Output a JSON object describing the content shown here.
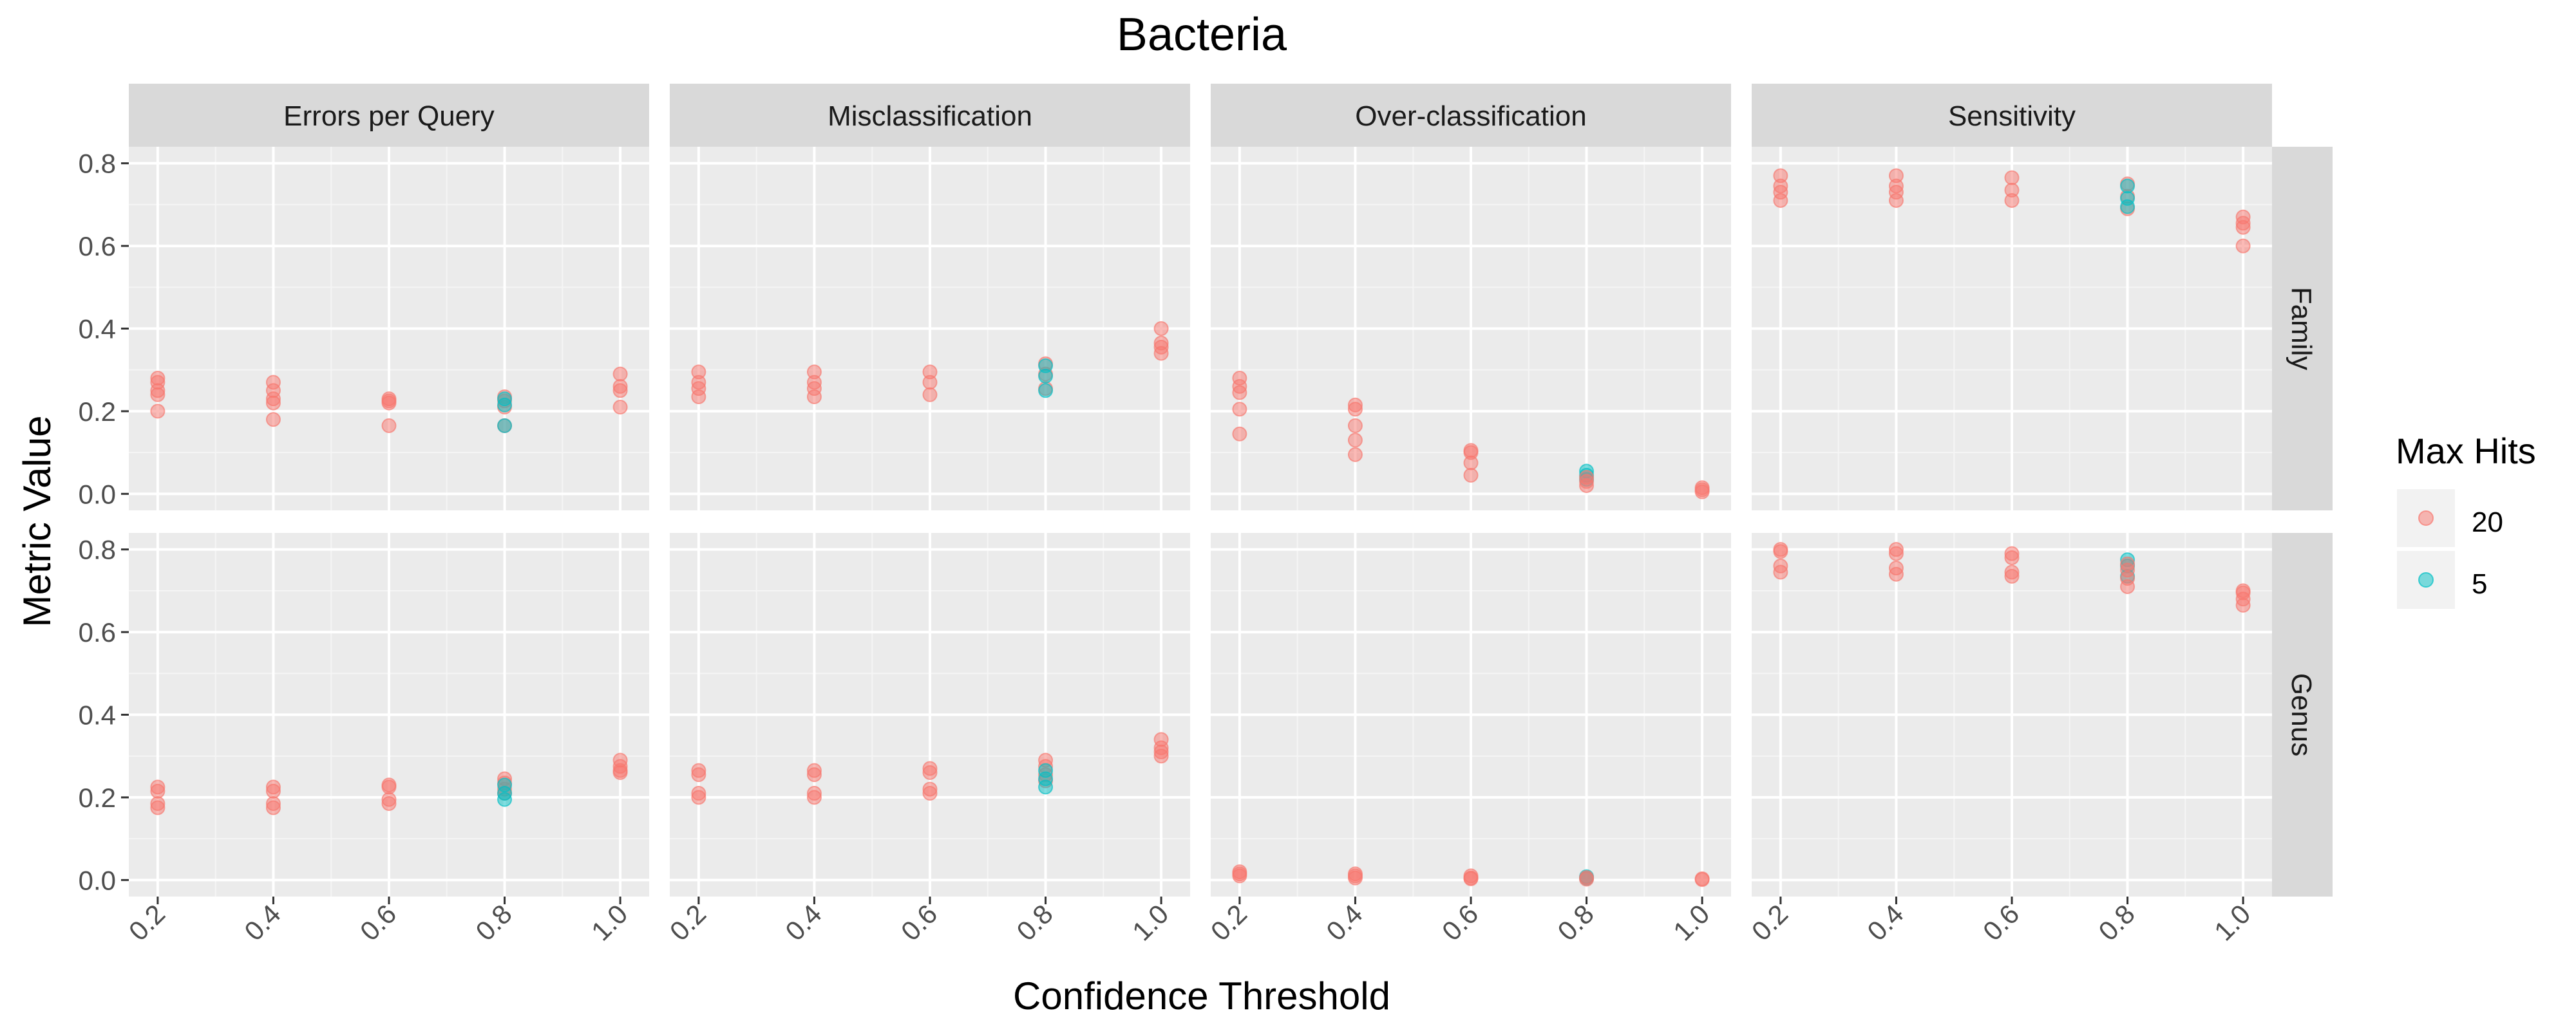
{
  "chart_data": {
    "type": "scatter",
    "title": "Bacteria",
    "xlabel": "Confidence Threshold",
    "ylabel": "Metric Value",
    "xlim": [
      0.15,
      1.05
    ],
    "ylim": [
      -0.04,
      0.84
    ],
    "x_ticks": [
      "0.2",
      "0.4",
      "0.6",
      "0.8",
      "1.0"
    ],
    "y_ticks": [
      "0.0",
      "0.2",
      "0.4",
      "0.6",
      "0.8"
    ],
    "grid": true,
    "legend": {
      "title": "Max Hits",
      "placement": "right",
      "entries": [
        {
          "label": "20",
          "color": "#F8766D"
        },
        {
          "label": "5",
          "color": "#00BFC4"
        }
      ]
    },
    "facet_columns": [
      "Errors per Query",
      "Misclassification",
      "Over-classification",
      "Sensitivity"
    ],
    "facet_rows": [
      "Family",
      "Genus"
    ],
    "series_colors": {
      "20": "#F8766D",
      "5": "#00BFC4"
    },
    "panels": [
      {
        "column": "Errors per Query",
        "row": "Family",
        "points": [
          {
            "x": 0.2,
            "y": 0.28,
            "hits": "20"
          },
          {
            "x": 0.2,
            "y": 0.27,
            "hits": "20"
          },
          {
            "x": 0.2,
            "y": 0.25,
            "hits": "20"
          },
          {
            "x": 0.2,
            "y": 0.24,
            "hits": "20"
          },
          {
            "x": 0.2,
            "y": 0.2,
            "hits": "20"
          },
          {
            "x": 0.4,
            "y": 0.27,
            "hits": "20"
          },
          {
            "x": 0.4,
            "y": 0.25,
            "hits": "20"
          },
          {
            "x": 0.4,
            "y": 0.23,
            "hits": "20"
          },
          {
            "x": 0.4,
            "y": 0.22,
            "hits": "20"
          },
          {
            "x": 0.4,
            "y": 0.18,
            "hits": "20"
          },
          {
            "x": 0.6,
            "y": 0.23,
            "hits": "20"
          },
          {
            "x": 0.6,
            "y": 0.225,
            "hits": "20"
          },
          {
            "x": 0.6,
            "y": 0.22,
            "hits": "20"
          },
          {
            "x": 0.6,
            "y": 0.165,
            "hits": "20"
          },
          {
            "x": 0.8,
            "y": 0.235,
            "hits": "20"
          },
          {
            "x": 0.8,
            "y": 0.225,
            "hits": "20"
          },
          {
            "x": 0.8,
            "y": 0.21,
            "hits": "20"
          },
          {
            "x": 0.8,
            "y": 0.165,
            "hits": "20"
          },
          {
            "x": 0.8,
            "y": 0.23,
            "hits": "5"
          },
          {
            "x": 0.8,
            "y": 0.215,
            "hits": "5"
          },
          {
            "x": 0.8,
            "y": 0.165,
            "hits": "5"
          },
          {
            "x": 1.0,
            "y": 0.29,
            "hits": "20"
          },
          {
            "x": 1.0,
            "y": 0.26,
            "hits": "20"
          },
          {
            "x": 1.0,
            "y": 0.25,
            "hits": "20"
          },
          {
            "x": 1.0,
            "y": 0.21,
            "hits": "20"
          }
        ]
      },
      {
        "column": "Misclassification",
        "row": "Family",
        "points": [
          {
            "x": 0.2,
            "y": 0.295,
            "hits": "20"
          },
          {
            "x": 0.2,
            "y": 0.27,
            "hits": "20"
          },
          {
            "x": 0.2,
            "y": 0.255,
            "hits": "20"
          },
          {
            "x": 0.2,
            "y": 0.235,
            "hits": "20"
          },
          {
            "x": 0.4,
            "y": 0.295,
            "hits": "20"
          },
          {
            "x": 0.4,
            "y": 0.27,
            "hits": "20"
          },
          {
            "x": 0.4,
            "y": 0.255,
            "hits": "20"
          },
          {
            "x": 0.4,
            "y": 0.235,
            "hits": "20"
          },
          {
            "x": 0.6,
            "y": 0.295,
            "hits": "20"
          },
          {
            "x": 0.6,
            "y": 0.27,
            "hits": "20"
          },
          {
            "x": 0.6,
            "y": 0.24,
            "hits": "20"
          },
          {
            "x": 0.8,
            "y": 0.315,
            "hits": "20"
          },
          {
            "x": 0.8,
            "y": 0.29,
            "hits": "20"
          },
          {
            "x": 0.8,
            "y": 0.255,
            "hits": "20"
          },
          {
            "x": 0.8,
            "y": 0.31,
            "hits": "5"
          },
          {
            "x": 0.8,
            "y": 0.285,
            "hits": "5"
          },
          {
            "x": 0.8,
            "y": 0.25,
            "hits": "5"
          },
          {
            "x": 1.0,
            "y": 0.4,
            "hits": "20"
          },
          {
            "x": 1.0,
            "y": 0.365,
            "hits": "20"
          },
          {
            "x": 1.0,
            "y": 0.355,
            "hits": "20"
          },
          {
            "x": 1.0,
            "y": 0.34,
            "hits": "20"
          }
        ]
      },
      {
        "column": "Over-classification",
        "row": "Family",
        "points": [
          {
            "x": 0.2,
            "y": 0.28,
            "hits": "20"
          },
          {
            "x": 0.2,
            "y": 0.26,
            "hits": "20"
          },
          {
            "x": 0.2,
            "y": 0.245,
            "hits": "20"
          },
          {
            "x": 0.2,
            "y": 0.205,
            "hits": "20"
          },
          {
            "x": 0.2,
            "y": 0.145,
            "hits": "20"
          },
          {
            "x": 0.4,
            "y": 0.215,
            "hits": "20"
          },
          {
            "x": 0.4,
            "y": 0.205,
            "hits": "20"
          },
          {
            "x": 0.4,
            "y": 0.165,
            "hits": "20"
          },
          {
            "x": 0.4,
            "y": 0.13,
            "hits": "20"
          },
          {
            "x": 0.4,
            "y": 0.095,
            "hits": "20"
          },
          {
            "x": 0.6,
            "y": 0.105,
            "hits": "20"
          },
          {
            "x": 0.6,
            "y": 0.1,
            "hits": "20"
          },
          {
            "x": 0.6,
            "y": 0.075,
            "hits": "20"
          },
          {
            "x": 0.6,
            "y": 0.045,
            "hits": "20"
          },
          {
            "x": 0.8,
            "y": 0.055,
            "hits": "5"
          },
          {
            "x": 0.8,
            "y": 0.045,
            "hits": "5"
          },
          {
            "x": 0.8,
            "y": 0.035,
            "hits": "5"
          },
          {
            "x": 0.8,
            "y": 0.04,
            "hits": "20"
          },
          {
            "x": 0.8,
            "y": 0.03,
            "hits": "20"
          },
          {
            "x": 0.8,
            "y": 0.02,
            "hits": "20"
          },
          {
            "x": 1.0,
            "y": 0.015,
            "hits": "20"
          },
          {
            "x": 1.0,
            "y": 0.01,
            "hits": "20"
          },
          {
            "x": 1.0,
            "y": 0.005,
            "hits": "20"
          }
        ]
      },
      {
        "column": "Sensitivity",
        "row": "Family",
        "points": [
          {
            "x": 0.2,
            "y": 0.77,
            "hits": "20"
          },
          {
            "x": 0.2,
            "y": 0.745,
            "hits": "20"
          },
          {
            "x": 0.2,
            "y": 0.73,
            "hits": "20"
          },
          {
            "x": 0.2,
            "y": 0.71,
            "hits": "20"
          },
          {
            "x": 0.4,
            "y": 0.77,
            "hits": "20"
          },
          {
            "x": 0.4,
            "y": 0.745,
            "hits": "20"
          },
          {
            "x": 0.4,
            "y": 0.73,
            "hits": "20"
          },
          {
            "x": 0.4,
            "y": 0.71,
            "hits": "20"
          },
          {
            "x": 0.6,
            "y": 0.765,
            "hits": "20"
          },
          {
            "x": 0.6,
            "y": 0.735,
            "hits": "20"
          },
          {
            "x": 0.6,
            "y": 0.71,
            "hits": "20"
          },
          {
            "x": 0.8,
            "y": 0.75,
            "hits": "20"
          },
          {
            "x": 0.8,
            "y": 0.72,
            "hits": "20"
          },
          {
            "x": 0.8,
            "y": 0.69,
            "hits": "20"
          },
          {
            "x": 0.8,
            "y": 0.745,
            "hits": "5"
          },
          {
            "x": 0.8,
            "y": 0.715,
            "hits": "5"
          },
          {
            "x": 0.8,
            "y": 0.695,
            "hits": "5"
          },
          {
            "x": 1.0,
            "y": 0.67,
            "hits": "20"
          },
          {
            "x": 1.0,
            "y": 0.655,
            "hits": "20"
          },
          {
            "x": 1.0,
            "y": 0.645,
            "hits": "20"
          },
          {
            "x": 1.0,
            "y": 0.6,
            "hits": "20"
          }
        ]
      },
      {
        "column": "Errors per Query",
        "row": "Genus",
        "points": [
          {
            "x": 0.2,
            "y": 0.225,
            "hits": "20"
          },
          {
            "x": 0.2,
            "y": 0.215,
            "hits": "20"
          },
          {
            "x": 0.2,
            "y": 0.185,
            "hits": "20"
          },
          {
            "x": 0.2,
            "y": 0.175,
            "hits": "20"
          },
          {
            "x": 0.4,
            "y": 0.225,
            "hits": "20"
          },
          {
            "x": 0.4,
            "y": 0.215,
            "hits": "20"
          },
          {
            "x": 0.4,
            "y": 0.185,
            "hits": "20"
          },
          {
            "x": 0.4,
            "y": 0.175,
            "hits": "20"
          },
          {
            "x": 0.6,
            "y": 0.23,
            "hits": "20"
          },
          {
            "x": 0.6,
            "y": 0.225,
            "hits": "20"
          },
          {
            "x": 0.6,
            "y": 0.195,
            "hits": "20"
          },
          {
            "x": 0.6,
            "y": 0.185,
            "hits": "20"
          },
          {
            "x": 0.8,
            "y": 0.245,
            "hits": "20"
          },
          {
            "x": 0.8,
            "y": 0.235,
            "hits": "20"
          },
          {
            "x": 0.8,
            "y": 0.22,
            "hits": "20"
          },
          {
            "x": 0.8,
            "y": 0.21,
            "hits": "20"
          },
          {
            "x": 0.8,
            "y": 0.23,
            "hits": "5"
          },
          {
            "x": 0.8,
            "y": 0.21,
            "hits": "5"
          },
          {
            "x": 0.8,
            "y": 0.195,
            "hits": "5"
          },
          {
            "x": 1.0,
            "y": 0.29,
            "hits": "20"
          },
          {
            "x": 1.0,
            "y": 0.275,
            "hits": "20"
          },
          {
            "x": 1.0,
            "y": 0.265,
            "hits": "20"
          },
          {
            "x": 1.0,
            "y": 0.26,
            "hits": "20"
          }
        ]
      },
      {
        "column": "Misclassification",
        "row": "Genus",
        "points": [
          {
            "x": 0.2,
            "y": 0.265,
            "hits": "20"
          },
          {
            "x": 0.2,
            "y": 0.255,
            "hits": "20"
          },
          {
            "x": 0.2,
            "y": 0.21,
            "hits": "20"
          },
          {
            "x": 0.2,
            "y": 0.2,
            "hits": "20"
          },
          {
            "x": 0.4,
            "y": 0.265,
            "hits": "20"
          },
          {
            "x": 0.4,
            "y": 0.255,
            "hits": "20"
          },
          {
            "x": 0.4,
            "y": 0.21,
            "hits": "20"
          },
          {
            "x": 0.4,
            "y": 0.2,
            "hits": "20"
          },
          {
            "x": 0.6,
            "y": 0.27,
            "hits": "20"
          },
          {
            "x": 0.6,
            "y": 0.26,
            "hits": "20"
          },
          {
            "x": 0.6,
            "y": 0.22,
            "hits": "20"
          },
          {
            "x": 0.6,
            "y": 0.21,
            "hits": "20"
          },
          {
            "x": 0.8,
            "y": 0.29,
            "hits": "20"
          },
          {
            "x": 0.8,
            "y": 0.275,
            "hits": "20"
          },
          {
            "x": 0.8,
            "y": 0.255,
            "hits": "20"
          },
          {
            "x": 0.8,
            "y": 0.24,
            "hits": "20"
          },
          {
            "x": 0.8,
            "y": 0.265,
            "hits": "5"
          },
          {
            "x": 0.8,
            "y": 0.245,
            "hits": "5"
          },
          {
            "x": 0.8,
            "y": 0.225,
            "hits": "5"
          },
          {
            "x": 1.0,
            "y": 0.34,
            "hits": "20"
          },
          {
            "x": 1.0,
            "y": 0.32,
            "hits": "20"
          },
          {
            "x": 1.0,
            "y": 0.31,
            "hits": "20"
          },
          {
            "x": 1.0,
            "y": 0.3,
            "hits": "20"
          }
        ]
      },
      {
        "column": "Over-classification",
        "row": "Genus",
        "points": [
          {
            "x": 0.2,
            "y": 0.02,
            "hits": "20"
          },
          {
            "x": 0.2,
            "y": 0.015,
            "hits": "20"
          },
          {
            "x": 0.2,
            "y": 0.01,
            "hits": "20"
          },
          {
            "x": 0.4,
            "y": 0.015,
            "hits": "20"
          },
          {
            "x": 0.4,
            "y": 0.01,
            "hits": "20"
          },
          {
            "x": 0.4,
            "y": 0.005,
            "hits": "20"
          },
          {
            "x": 0.6,
            "y": 0.01,
            "hits": "20"
          },
          {
            "x": 0.6,
            "y": 0.005,
            "hits": "20"
          },
          {
            "x": 0.6,
            "y": 0.003,
            "hits": "20"
          },
          {
            "x": 0.8,
            "y": 0.008,
            "hits": "5"
          },
          {
            "x": 0.8,
            "y": 0.004,
            "hits": "5"
          },
          {
            "x": 0.8,
            "y": 0.006,
            "hits": "20"
          },
          {
            "x": 0.8,
            "y": 0.002,
            "hits": "20"
          },
          {
            "x": 1.0,
            "y": 0.003,
            "hits": "20"
          },
          {
            "x": 1.0,
            "y": 0.001,
            "hits": "20"
          }
        ]
      },
      {
        "column": "Sensitivity",
        "row": "Genus",
        "points": [
          {
            "x": 0.2,
            "y": 0.8,
            "hits": "20"
          },
          {
            "x": 0.2,
            "y": 0.795,
            "hits": "20"
          },
          {
            "x": 0.2,
            "y": 0.76,
            "hits": "20"
          },
          {
            "x": 0.2,
            "y": 0.745,
            "hits": "20"
          },
          {
            "x": 0.4,
            "y": 0.8,
            "hits": "20"
          },
          {
            "x": 0.4,
            "y": 0.79,
            "hits": "20"
          },
          {
            "x": 0.4,
            "y": 0.755,
            "hits": "20"
          },
          {
            "x": 0.4,
            "y": 0.74,
            "hits": "20"
          },
          {
            "x": 0.6,
            "y": 0.79,
            "hits": "20"
          },
          {
            "x": 0.6,
            "y": 0.78,
            "hits": "20"
          },
          {
            "x": 0.6,
            "y": 0.745,
            "hits": "20"
          },
          {
            "x": 0.6,
            "y": 0.735,
            "hits": "20"
          },
          {
            "x": 0.8,
            "y": 0.775,
            "hits": "5"
          },
          {
            "x": 0.8,
            "y": 0.76,
            "hits": "5"
          },
          {
            "x": 0.8,
            "y": 0.735,
            "hits": "5"
          },
          {
            "x": 0.8,
            "y": 0.765,
            "hits": "20"
          },
          {
            "x": 0.8,
            "y": 0.75,
            "hits": "20"
          },
          {
            "x": 0.8,
            "y": 0.73,
            "hits": "20"
          },
          {
            "x": 0.8,
            "y": 0.71,
            "hits": "20"
          },
          {
            "x": 1.0,
            "y": 0.7,
            "hits": "20"
          },
          {
            "x": 1.0,
            "y": 0.695,
            "hits": "20"
          },
          {
            "x": 1.0,
            "y": 0.68,
            "hits": "20"
          },
          {
            "x": 1.0,
            "y": 0.665,
            "hits": "20"
          }
        ]
      }
    ]
  }
}
